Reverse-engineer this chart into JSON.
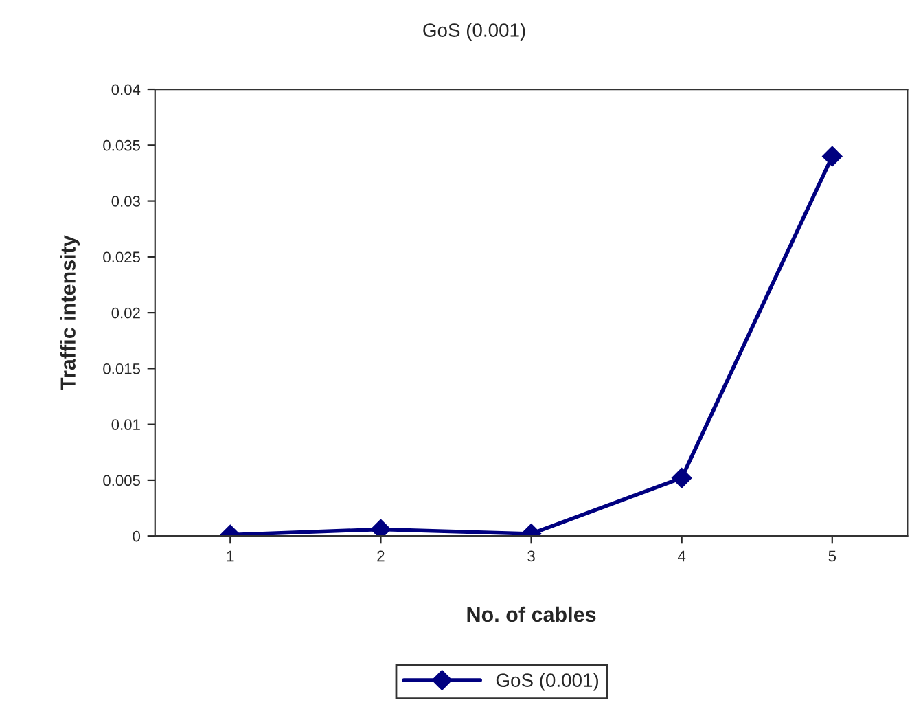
{
  "chart_data": {
    "type": "line",
    "title": "GoS (0.001)",
    "xlabel": "No. of cables",
    "ylabel": "Traffic intensity",
    "categories": [
      "1",
      "2",
      "3",
      "4",
      "5"
    ],
    "series": [
      {
        "name": "GoS (0.001)",
        "color": "#000080",
        "values": [
          0.0001,
          0.0006,
          0.0002,
          0.0052,
          0.034
        ]
      }
    ],
    "ylim": [
      0,
      0.04
    ],
    "yticks": [
      0,
      0.005,
      0.01,
      0.015,
      0.02,
      0.025,
      0.03,
      0.035,
      0.04
    ],
    "legend": "bottom",
    "marker": "diamond",
    "line_style": "solid",
    "grid": false
  }
}
